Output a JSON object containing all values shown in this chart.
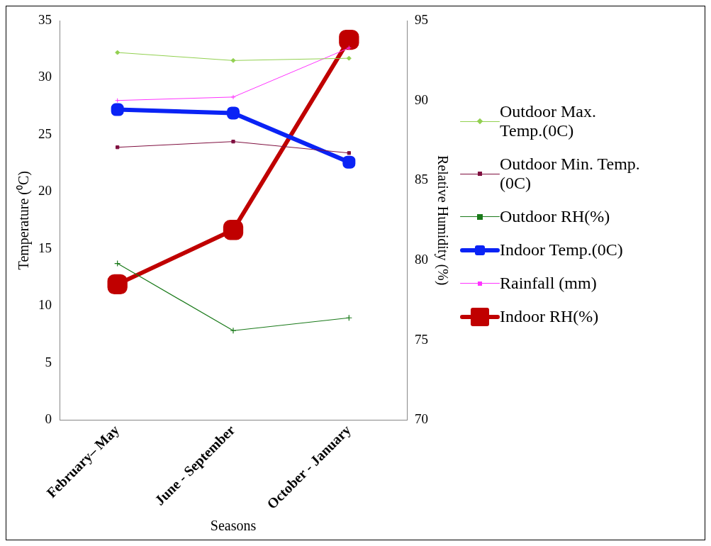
{
  "chart_data": {
    "type": "line",
    "xlabel": "Seasons",
    "ylabel": "Temperature (⁰C)",
    "y2label": "Relative Humidity (%)",
    "categories": [
      "February– May",
      "June - September",
      "October - January"
    ],
    "ylim": [
      0,
      35
    ],
    "yticks": [
      0,
      5,
      10,
      15,
      20,
      25,
      30,
      35
    ],
    "y2lim": [
      70,
      95
    ],
    "y2ticks": [
      70,
      75,
      80,
      85,
      90,
      95
    ],
    "grid": false,
    "legend": "right",
    "series": [
      {
        "name": "Outdoor Max. Temp.(0C)",
        "color": "#92d050",
        "marker": "diamond",
        "values": [
          32.2,
          31.5,
          31.7
        ]
      },
      {
        "name": "Outdoor Min. Temp.(0C)",
        "color": "#7f0f3f",
        "marker": "square",
        "values": [
          23.9,
          24.4,
          23.4
        ]
      },
      {
        "name": "Outdoor RH(%)",
        "color": "#1a7a1a",
        "marker": "cross",
        "axis": "y2",
        "values": [
          79.8,
          75.6,
          76.4
        ]
      },
      {
        "name": "Indoor Temp.(0C)",
        "color": "#0a23f5",
        "marker": "square",
        "values": [
          27.2,
          26.9,
          22.6
        ]
      },
      {
        "name": "Rainfall (mm)",
        "color": "#ff33ff",
        "marker": "cross",
        "values": [
          28.0,
          28.3,
          32.6
        ]
      },
      {
        "name": "Indoor RH(%)",
        "color": "#c00000",
        "marker": "square",
        "axis": "y2",
        "values": [
          78.5,
          81.9,
          93.8
        ]
      }
    ]
  }
}
